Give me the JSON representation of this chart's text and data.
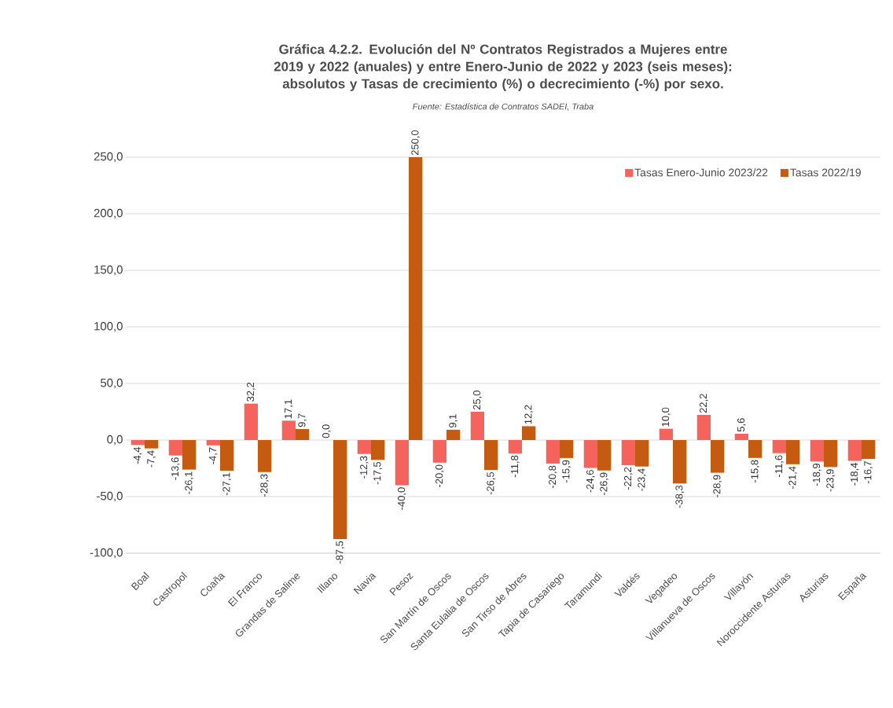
{
  "chart_data": {
    "type": "bar",
    "title": "Gráfica 4.2.2. Evolución del Nº Contratos Registrados a Mujeres entre 2019 y 2022 (anuales) y entre Enero-Junio de 2022 y 2023 (seis meses):  absolutos y Tasas de crecimiento (%) o decrecimiento (-%) por sexo.",
    "subtitle": "Fuente: Estadística de Contratos SADEI, Traba",
    "categories": [
      "Boal",
      "Castropol",
      "Coaña",
      "El Franco",
      "Grandas de Salime",
      "Illano",
      "Navia",
      "Pesoz",
      "San Martín de Oscos",
      "Santa Eulalia de Oscos",
      "San Tirso de Abres",
      "Tapia de Casariego",
      "Taramundi",
      "Valdés",
      "Vegadeo",
      "Villanueva de Oscos",
      "Villayón",
      "Noroccidente Asturias",
      "Asturias",
      "España"
    ],
    "series": [
      {
        "name": "Tasas Enero-Junio 2023/22",
        "color": "#f4645c",
        "values": [
          -4.4,
          -13.6,
          -4.7,
          32.2,
          17.1,
          0.0,
          -12.3,
          -40.0,
          -20.0,
          25.0,
          -11.8,
          -20.8,
          -24.6,
          -22.2,
          10.0,
          22.2,
          5.6,
          -11.6,
          -18.9,
          -18.4
        ],
        "value_labels": [
          "-4,4",
          "-13,6",
          "-4,7",
          "32,2",
          "17,1",
          "0,0",
          "-12,3",
          "-40,0",
          "-20,0",
          "25,0",
          "-11,8",
          "-20,8",
          "-24,6",
          "-22,2",
          "10,0",
          "22,2",
          "5,6",
          "-11,6",
          "-18,9",
          "-18,4"
        ]
      },
      {
        "name": "Tasas 2022/19",
        "color": "#c55a11",
        "values": [
          -7.4,
          -26.1,
          -27.1,
          -28.3,
          9.7,
          -87.5,
          -17.5,
          250.0,
          9.1,
          -26.5,
          12.2,
          -15.9,
          -26.9,
          -23.4,
          -38.3,
          -28.9,
          -15.8,
          -21.4,
          -23.9,
          -16.7
        ],
        "value_labels": [
          "-7,4",
          "-26,1",
          "-27,1",
          "-28,3",
          "9,7",
          "-87,5",
          "-17,5",
          "250,0",
          "9,1",
          "-26,5",
          "12,2",
          "-15,9",
          "-26,9",
          "-23,4",
          "-38,3",
          "-28,9",
          "-15,8",
          "-21,4",
          "-23,9",
          "-16,7"
        ]
      }
    ],
    "ylim": [
      -100,
      250
    ],
    "yticks": [
      {
        "value": -100,
        "label": "-100,0"
      },
      {
        "value": -50,
        "label": "-50,0"
      },
      {
        "value": 0,
        "label": "0,0"
      },
      {
        "value": 50,
        "label": "50,0"
      },
      {
        "value": 100,
        "label": "100,0"
      },
      {
        "value": 150,
        "label": "150,0"
      },
      {
        "value": 200,
        "label": "200,0"
      },
      {
        "value": 250,
        "label": "250,0"
      }
    ],
    "grid": "y",
    "legend": "top right"
  }
}
